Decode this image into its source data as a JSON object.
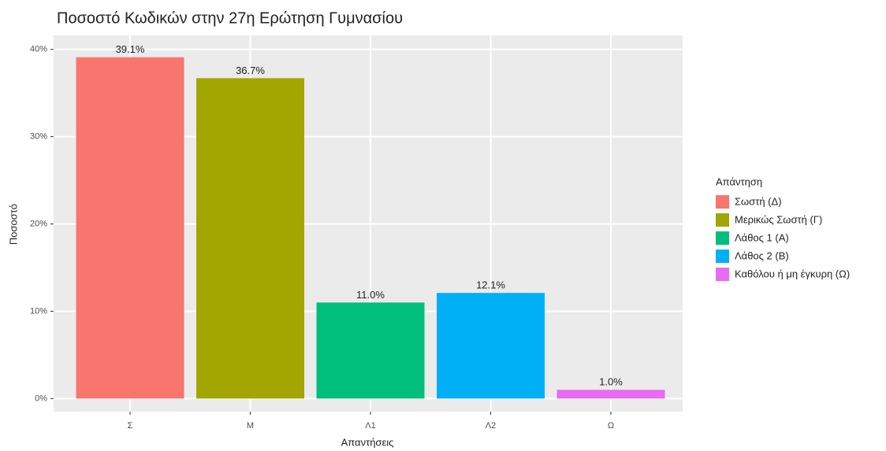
{
  "chart_data": {
    "type": "bar",
    "title": "Ποσοστό Κωδικών στην 27η Ερώτηση Γυμνασίου",
    "x_label": "Απαντήσεις",
    "y_label": "Ποσοστό",
    "categories": [
      "Σ",
      "Μ",
      "Λ1",
      "Λ2",
      "Ω"
    ],
    "values": [
      39.1,
      36.7,
      11.0,
      12.1,
      1.0
    ],
    "value_labels": [
      "39.1%",
      "36.7%",
      "11.0%",
      "12.1%",
      "1.0%"
    ],
    "colors": [
      "#F8766D",
      "#A3A500",
      "#00BF7D",
      "#00B0F6",
      "#E76BF3"
    ],
    "legend_title": "Απάντηση",
    "legend_labels": [
      "Σωστή (Δ)",
      "Μερικώς Σωστή (Γ)",
      "Λάθος 1 (Α)",
      "Λάθος 2 (Β)",
      "Καθόλου ή μη έγκυρη (Ω)"
    ],
    "ylim": [
      -1.5,
      41.6
    ],
    "yticks": [
      {
        "value": 0,
        "label": "0%"
      },
      {
        "value": 10,
        "label": "10%"
      },
      {
        "value": 20,
        "label": "20%"
      },
      {
        "value": 30,
        "label": "30%"
      },
      {
        "value": 40,
        "label": "40%"
      }
    ],
    "grid": true
  }
}
